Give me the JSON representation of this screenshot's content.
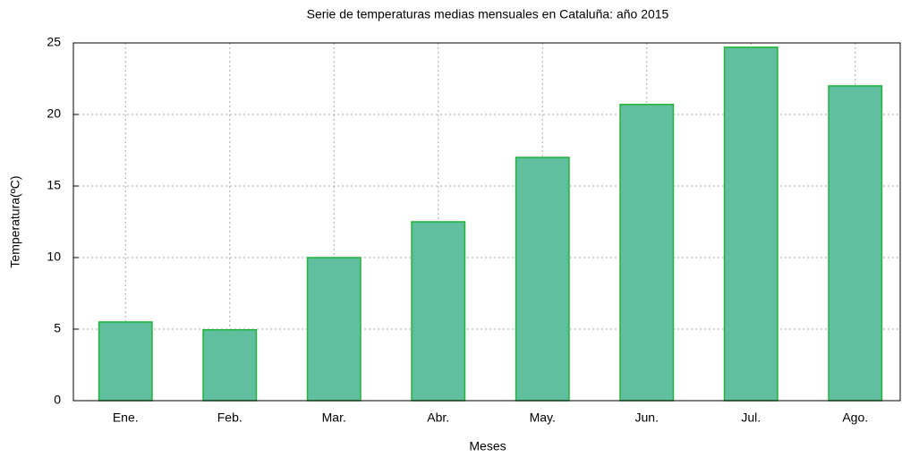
{
  "chart_data": {
    "type": "bar",
    "title": "Serie de temperaturas medias mensuales en Cataluña:  año 2015",
    "x_label": "Meses",
    "y_label": "Temperatura(ºC)",
    "categories": [
      "Ene.",
      "Feb.",
      "Mar.",
      "Abr.",
      "May.",
      "Jun.",
      "Jul.",
      "Ago."
    ],
    "values": [
      5.5,
      4.95,
      10,
      12.5,
      17,
      20.7,
      24.7,
      22
    ],
    "color": "#5fbf9f",
    "edge_color": "#22b33a",
    "ylim": [
      0,
      25
    ],
    "yticks": [
      0,
      5,
      10,
      15,
      20,
      25
    ],
    "grid": true
  }
}
